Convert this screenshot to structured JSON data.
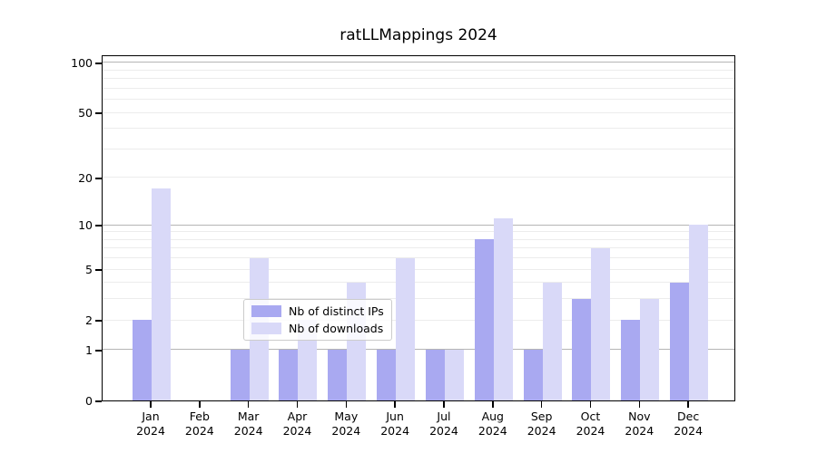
{
  "title": "ratLLMappings 2024",
  "legend": {
    "items": [
      {
        "label": "Nb of distinct IPs",
        "color": "#a9a9f1"
      },
      {
        "label": "Nb of downloads",
        "color": "#d9d9f8"
      }
    ]
  },
  "chart_data": {
    "type": "bar",
    "title": "ratLLMappings 2024",
    "xlabel": "",
    "ylabel": "",
    "y_scale": "log10(1+x)",
    "ylim": [
      0,
      112
    ],
    "grid": "on",
    "legend_position": "lower center",
    "categories": [
      "Jan 2024",
      "Feb 2024",
      "Mar 2024",
      "Apr 2024",
      "May 2024",
      "Jun 2024",
      "Jul 2024",
      "Aug 2024",
      "Sep 2024",
      "Oct 2024",
      "Nov 2024",
      "Dec 2024"
    ],
    "series": [
      {
        "name": "Nb of distinct IPs",
        "color": "#a9a9f1",
        "values": [
          2,
          0,
          1,
          1,
          1,
          1,
          1,
          8,
          1,
          3,
          2,
          4
        ]
      },
      {
        "name": "Nb of downloads",
        "color": "#d9d9f8",
        "values": [
          17,
          0,
          6,
          2,
          4,
          6,
          1,
          11,
          4,
          7,
          3,
          10
        ]
      }
    ],
    "y_ticks": [
      0,
      1,
      2,
      5,
      10,
      20,
      50,
      100
    ],
    "y_major_gridlines": [
      1,
      10,
      100
    ],
    "y_minor_gridlines": [
      2,
      3,
      4,
      5,
      6,
      7,
      8,
      9,
      20,
      30,
      40,
      50,
      60,
      70,
      80,
      90
    ],
    "colors": {
      "bar_dark": "#a9a9f1",
      "bar_light": "#d9d9f8",
      "grid_major": "#b5b5b5",
      "grid_minor": "#ececec",
      "axis": "#000000"
    }
  }
}
